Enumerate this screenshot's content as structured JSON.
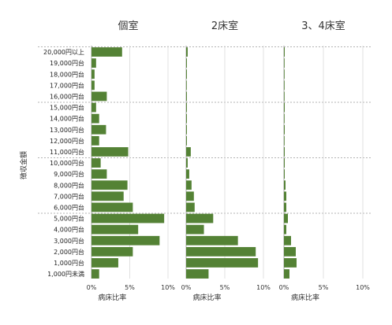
{
  "chart_data": {
    "type": "bar",
    "orientation": "horizontal",
    "ylabel": "徴収金額",
    "bar_color": "#548235",
    "categories": [
      "20,000円以上",
      "19,000円台",
      "18,000円台",
      "17,000円台",
      "16,000円台",
      "15,000円台",
      "14,000円台",
      "13,000円台",
      "12,000円台",
      "11,000円台",
      "10,000円台",
      "9,000円台",
      "8,000円台",
      "7,000円台",
      "6,000円台",
      "5,000円台",
      "4,000円台",
      "3,000円台",
      "2,000円台",
      "1,000円台",
      "1,000円未満"
    ],
    "panels": [
      {
        "title": "個室",
        "xlabel": "病床比率",
        "xlim": [
          0,
          10
        ],
        "xticks": [
          "0%",
          "5%",
          "10%"
        ],
        "values": [
          4.0,
          0.6,
          0.4,
          0.4,
          2.0,
          0.6,
          1.0,
          1.9,
          1.0,
          4.8,
          1.2,
          2.0,
          4.7,
          4.2,
          5.4,
          9.5,
          6.1,
          8.9,
          5.4,
          3.5,
          1.0
        ]
      },
      {
        "title": "2床室",
        "xlabel": "病床比率",
        "xlim": [
          0,
          10
        ],
        "xticks": [
          "0%",
          "5%",
          "10%"
        ],
        "values": [
          0.2,
          0.1,
          0.1,
          0.05,
          0.1,
          0.1,
          0.1,
          0.1,
          0.1,
          0.6,
          0.2,
          0.4,
          0.7,
          1.0,
          1.1,
          3.5,
          2.3,
          6.7,
          9.0,
          9.3,
          2.9
        ]
      },
      {
        "title": "3、4床室",
        "xlabel": "病床比率",
        "xlim": [
          0,
          10
        ],
        "xticks": [
          "0%",
          "5%",
          "10%"
        ],
        "values": [
          0.1,
          0.05,
          0.05,
          0.05,
          0.05,
          0.1,
          0.05,
          0.1,
          0.05,
          0.1,
          0.1,
          0.1,
          0.2,
          0.3,
          0.3,
          0.5,
          0.3,
          0.9,
          1.5,
          1.6,
          0.7
        ]
      }
    ]
  }
}
